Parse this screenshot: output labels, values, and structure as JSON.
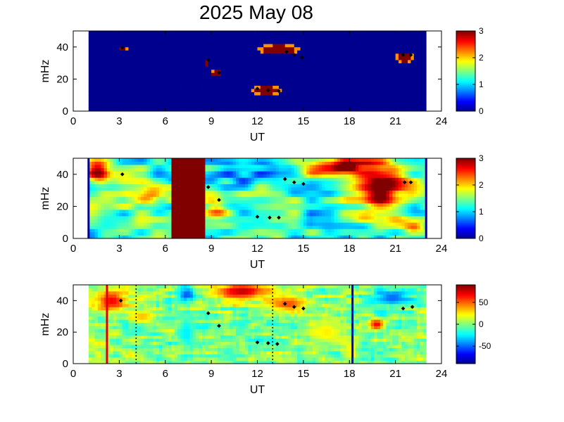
{
  "title": "2025 May 08",
  "colors": {
    "background_blue": "#00008f",
    "dark_red": "#800000",
    "jet": [
      "#00008f",
      "#0000ff",
      "#0080ff",
      "#00ffff",
      "#80ff80",
      "#ffff00",
      "#ff8000",
      "#ff0000",
      "#800000"
    ]
  },
  "chart_data": [
    {
      "type": "heatmap",
      "xlabel": "UT",
      "ylabel": "mHz",
      "xlim": [
        0,
        24
      ],
      "ylim": [
        0,
        50
      ],
      "xticks": [
        "0",
        "3",
        "6",
        "9",
        "12",
        "15",
        "18",
        "21",
        "24"
      ],
      "yticks": [
        "0",
        "20",
        "40"
      ],
      "data_x_range": [
        1,
        23
      ],
      "colorbar": {
        "range": [
          0,
          3
        ],
        "ticks": [
          "0",
          "1",
          "2",
          "3"
        ]
      },
      "events": [
        {
          "x": [
            2.9,
            3.6
          ],
          "y": [
            38,
            41
          ],
          "level": 3
        },
        {
          "x": [
            8.6,
            8.9
          ],
          "y": [
            27,
            33
          ],
          "level": 3
        },
        {
          "x": [
            9.0,
            9.7
          ],
          "y": [
            21,
            26
          ],
          "level": 3
        },
        {
          "x": [
            12.0,
            14.8
          ],
          "y": [
            35,
            42
          ],
          "level": 3
        },
        {
          "x": [
            11.5,
            13.6
          ],
          "y": [
            10,
            16
          ],
          "level": 3
        },
        {
          "x": [
            21.0,
            22.2
          ],
          "y": [
            30,
            37
          ],
          "level": 3
        }
      ],
      "markers": [
        {
          "x": 3.2,
          "y": 39.5
        },
        {
          "x": 13.9,
          "y": 37
        },
        {
          "x": 14.4,
          "y": 35
        },
        {
          "x": 14.9,
          "y": 33.5
        },
        {
          "x": 12.0,
          "y": 14
        },
        {
          "x": 12.7,
          "y": 13
        },
        {
          "x": 13.4,
          "y": 12.5
        },
        {
          "x": 8.8,
          "y": 32
        },
        {
          "x": 9.5,
          "y": 24
        },
        {
          "x": 21.5,
          "y": 35
        },
        {
          "x": 22.0,
          "y": 35
        }
      ]
    },
    {
      "type": "heatmap",
      "xlabel": "UT",
      "ylabel": "mHz",
      "xlim": [
        0,
        24
      ],
      "ylim": [
        0,
        50
      ],
      "xticks": [
        "0",
        "3",
        "6",
        "9",
        "12",
        "15",
        "18",
        "21",
        "24"
      ],
      "yticks": [
        "0",
        "20",
        "40"
      ],
      "data_x_range": [
        1,
        23
      ],
      "colorbar": {
        "range": [
          0,
          3
        ],
        "ticks": [
          "0",
          "1",
          "2",
          "3"
        ]
      },
      "saturated_band": {
        "x": [
          6.4,
          8.6
        ],
        "level": 3
      },
      "blobs": [
        {
          "x": 1.6,
          "y": 42,
          "rx": 0.8,
          "ry": 8,
          "level": 2.8
        },
        {
          "x": 4.8,
          "y": 26,
          "rx": 1.2,
          "ry": 8,
          "level": 2.4
        },
        {
          "x": 10.5,
          "y": 40,
          "rx": 1.5,
          "ry": 6,
          "level": 0.7
        },
        {
          "x": 13.0,
          "y": 44,
          "rx": 1.6,
          "ry": 5,
          "level": 0.6
        },
        {
          "x": 17.0,
          "y": 44,
          "rx": 3.0,
          "ry": 6,
          "level": 2.9
        },
        {
          "x": 20.0,
          "y": 32,
          "rx": 1.8,
          "ry": 18,
          "level": 2.9
        },
        {
          "x": 22.2,
          "y": 6,
          "rx": 0.8,
          "ry": 6,
          "level": 2.2
        },
        {
          "x": 9.4,
          "y": 18,
          "rx": 0.8,
          "ry": 6,
          "level": 2.2
        },
        {
          "x": 14.8,
          "y": 10,
          "rx": 1.2,
          "ry": 6,
          "level": 0.9
        }
      ],
      "edge_lines": [
        1.0,
        23.0
      ],
      "markers": [
        {
          "x": 3.2,
          "y": 40
        },
        {
          "x": 13.8,
          "y": 37
        },
        {
          "x": 14.4,
          "y": 35
        },
        {
          "x": 15.0,
          "y": 34
        },
        {
          "x": 12.0,
          "y": 13.5
        },
        {
          "x": 12.8,
          "y": 13
        },
        {
          "x": 13.4,
          "y": 13
        },
        {
          "x": 8.8,
          "y": 32
        },
        {
          "x": 9.5,
          "y": 24
        },
        {
          "x": 21.6,
          "y": 35
        },
        {
          "x": 22.0,
          "y": 35
        }
      ]
    },
    {
      "type": "heatmap",
      "xlabel": "UT",
      "ylabel": "mHz",
      "xlim": [
        0,
        24
      ],
      "ylim": [
        0,
        50
      ],
      "xticks": [
        "0",
        "3",
        "6",
        "9",
        "12",
        "15",
        "18",
        "21",
        "24"
      ],
      "yticks": [
        "0",
        "20",
        "40"
      ],
      "data_x_range": [
        1,
        23
      ],
      "colorbar": {
        "range": [
          -90,
          90
        ],
        "ticks": [
          "50",
          "0",
          "-50"
        ],
        "tick_values": [
          50,
          0,
          -50
        ]
      },
      "vertical_lines": [
        {
          "x": 2.2,
          "color": "#e00000",
          "style": "solid"
        },
        {
          "x": 4.1,
          "color": "#000000",
          "style": "dotted"
        },
        {
          "x": 13.0,
          "color": "#000000",
          "style": "dotted"
        },
        {
          "x": 18.2,
          "color": "#0000c8",
          "style": "solid"
        }
      ],
      "blobs": [
        {
          "x": 2.5,
          "y": 40,
          "rx": 1.2,
          "ry": 8,
          "level": 70
        },
        {
          "x": 11.0,
          "y": 46,
          "rx": 2.0,
          "ry": 6,
          "level": 80
        },
        {
          "x": 14.0,
          "y": 38,
          "rx": 1.5,
          "ry": 6,
          "level": 55
        },
        {
          "x": 7.4,
          "y": 44,
          "rx": 0.6,
          "ry": 4,
          "level": -55
        },
        {
          "x": 7.4,
          "y": 20,
          "rx": 0.6,
          "ry": 14,
          "level": -25
        },
        {
          "x": 19.8,
          "y": 25,
          "rx": 0.6,
          "ry": 4,
          "level": 70
        },
        {
          "x": 20.8,
          "y": 42,
          "rx": 1.4,
          "ry": 6,
          "level": -50
        },
        {
          "x": 4.5,
          "y": 30,
          "rx": 1.0,
          "ry": 5,
          "level": 35
        },
        {
          "x": 16.5,
          "y": 20,
          "rx": 1.5,
          "ry": 10,
          "level": 25
        }
      ],
      "markers": [
        {
          "x": 3.1,
          "y": 40
        },
        {
          "x": 13.8,
          "y": 38
        },
        {
          "x": 14.4,
          "y": 36
        },
        {
          "x": 15.0,
          "y": 35
        },
        {
          "x": 12.0,
          "y": 13.5
        },
        {
          "x": 12.7,
          "y": 13
        },
        {
          "x": 13.3,
          "y": 12.5
        },
        {
          "x": 8.8,
          "y": 32
        },
        {
          "x": 9.5,
          "y": 24
        },
        {
          "x": 21.5,
          "y": 35
        },
        {
          "x": 22.1,
          "y": 36
        }
      ]
    }
  ]
}
